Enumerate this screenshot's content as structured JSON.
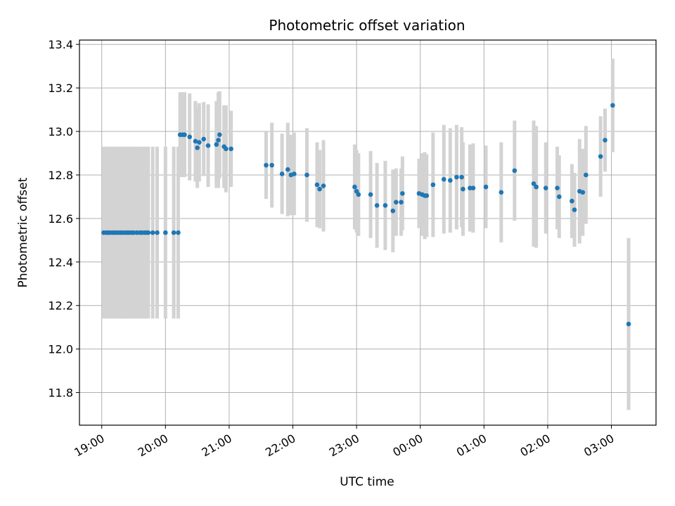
{
  "chart_data": {
    "type": "scatter",
    "title": "Photometric offset variation",
    "xlabel": "UTC time",
    "ylabel": "Photometric offset",
    "x_ticks": [
      "19:00",
      "20:00",
      "21:00",
      "22:00",
      "23:00",
      "00:00",
      "01:00",
      "02:00",
      "03:00"
    ],
    "y_ticks": [
      "11.8",
      "12.0",
      "12.2",
      "12.4",
      "12.6",
      "12.8",
      "13.0",
      "13.2",
      "13.4"
    ],
    "xlim_hours": [
      -0.35,
      8.7
    ],
    "ylim": [
      11.65,
      13.42
    ],
    "grid": true,
    "colors": {
      "point": "#1f77b4",
      "errorbar": "#d3d3d3",
      "grid": "#b0b0b0"
    },
    "series": [
      {
        "points": [
          {
            "t": 0.03,
            "y": 12.535,
            "e": 0.395
          },
          {
            "t": 0.07,
            "y": 12.535,
            "e": 0.395
          },
          {
            "t": 0.1,
            "y": 12.535,
            "e": 0.395
          },
          {
            "t": 0.13,
            "y": 12.535,
            "e": 0.395
          },
          {
            "t": 0.17,
            "y": 12.535,
            "e": 0.395
          },
          {
            "t": 0.2,
            "y": 12.535,
            "e": 0.395
          },
          {
            "t": 0.23,
            "y": 12.535,
            "e": 0.395
          },
          {
            "t": 0.27,
            "y": 12.535,
            "e": 0.395
          },
          {
            "t": 0.3,
            "y": 12.535,
            "e": 0.395
          },
          {
            "t": 0.33,
            "y": 12.535,
            "e": 0.395
          },
          {
            "t": 0.37,
            "y": 12.535,
            "e": 0.395
          },
          {
            "t": 0.4,
            "y": 12.535,
            "e": 0.395
          },
          {
            "t": 0.43,
            "y": 12.535,
            "e": 0.395
          },
          {
            "t": 0.47,
            "y": 12.535,
            "e": 0.395
          },
          {
            "t": 0.5,
            "y": 12.535,
            "e": 0.395
          },
          {
            "t": 0.55,
            "y": 12.535,
            "e": 0.395
          },
          {
            "t": 0.6,
            "y": 12.535,
            "e": 0.395
          },
          {
            "t": 0.63,
            "y": 12.535,
            "e": 0.395
          },
          {
            "t": 0.67,
            "y": 12.535,
            "e": 0.395
          },
          {
            "t": 0.7,
            "y": 12.535,
            "e": 0.395
          },
          {
            "t": 0.73,
            "y": 12.535,
            "e": 0.395
          },
          {
            "t": 0.8,
            "y": 12.535,
            "e": 0.395
          },
          {
            "t": 0.87,
            "y": 12.535,
            "e": 0.395
          },
          {
            "t": 1.0,
            "y": 12.535,
            "e": 0.395
          },
          {
            "t": 1.13,
            "y": 12.535,
            "e": 0.395
          },
          {
            "t": 1.2,
            "y": 12.535,
            "e": 0.395
          },
          {
            "t": 1.23,
            "y": 12.985,
            "e": 0.195
          },
          {
            "t": 1.27,
            "y": 12.985,
            "e": 0.195
          },
          {
            "t": 1.3,
            "y": 12.985,
            "e": 0.195
          },
          {
            "t": 1.38,
            "y": 12.975,
            "e": 0.2
          },
          {
            "t": 1.47,
            "y": 12.955,
            "e": 0.185
          },
          {
            "t": 1.5,
            "y": 12.925,
            "e": 0.185
          },
          {
            "t": 1.53,
            "y": 12.95,
            "e": 0.18
          },
          {
            "t": 1.6,
            "y": 12.965,
            "e": 0.17
          },
          {
            "t": 1.67,
            "y": 12.935,
            "e": 0.19
          },
          {
            "t": 1.8,
            "y": 12.94,
            "e": 0.2
          },
          {
            "t": 1.83,
            "y": 12.96,
            "e": 0.22
          },
          {
            "t": 1.85,
            "y": 12.985,
            "e": 0.2
          },
          {
            "t": 1.92,
            "y": 12.93,
            "e": 0.19
          },
          {
            "t": 1.95,
            "y": 12.92,
            "e": 0.2
          },
          {
            "t": 2.03,
            "y": 12.92,
            "e": 0.175
          },
          {
            "t": 2.58,
            "y": 12.845,
            "e": 0.155
          },
          {
            "t": 2.67,
            "y": 12.845,
            "e": 0.195
          },
          {
            "t": 2.83,
            "y": 12.805,
            "e": 0.185
          },
          {
            "t": 2.92,
            "y": 12.825,
            "e": 0.215
          },
          {
            "t": 2.97,
            "y": 12.8,
            "e": 0.185
          },
          {
            "t": 3.02,
            "y": 12.805,
            "e": 0.19
          },
          {
            "t": 3.22,
            "y": 12.8,
            "e": 0.215
          },
          {
            "t": 3.38,
            "y": 12.755,
            "e": 0.195
          },
          {
            "t": 3.42,
            "y": 12.735,
            "e": 0.18
          },
          {
            "t": 3.48,
            "y": 12.75,
            "e": 0.21
          },
          {
            "t": 3.97,
            "y": 12.745,
            "e": 0.195
          },
          {
            "t": 4.0,
            "y": 12.725,
            "e": 0.19
          },
          {
            "t": 4.03,
            "y": 12.71,
            "e": 0.19
          },
          {
            "t": 4.22,
            "y": 12.71,
            "e": 0.2
          },
          {
            "t": 4.32,
            "y": 12.66,
            "e": 0.195
          },
          {
            "t": 4.45,
            "y": 12.66,
            "e": 0.205
          },
          {
            "t": 4.57,
            "y": 12.635,
            "e": 0.19
          },
          {
            "t": 4.62,
            "y": 12.675,
            "e": 0.155
          },
          {
            "t": 4.7,
            "y": 12.675,
            "e": 0.155
          },
          {
            "t": 4.72,
            "y": 12.715,
            "e": 0.17
          },
          {
            "t": 4.98,
            "y": 12.715,
            "e": 0.16
          },
          {
            "t": 5.03,
            "y": 12.71,
            "e": 0.19
          },
          {
            "t": 5.07,
            "y": 12.705,
            "e": 0.2
          },
          {
            "t": 5.1,
            "y": 12.705,
            "e": 0.19
          },
          {
            "t": 5.2,
            "y": 12.755,
            "e": 0.24
          },
          {
            "t": 5.37,
            "y": 12.78,
            "e": 0.25
          },
          {
            "t": 5.47,
            "y": 12.775,
            "e": 0.24
          },
          {
            "t": 5.57,
            "y": 12.79,
            "e": 0.24
          },
          {
            "t": 5.65,
            "y": 12.79,
            "e": 0.23
          },
          {
            "t": 5.67,
            "y": 12.735,
            "e": 0.215
          },
          {
            "t": 5.78,
            "y": 12.74,
            "e": 0.2
          },
          {
            "t": 5.83,
            "y": 12.74,
            "e": 0.205
          },
          {
            "t": 6.03,
            "y": 12.745,
            "e": 0.19
          },
          {
            "t": 6.27,
            "y": 12.72,
            "e": 0.23
          },
          {
            "t": 6.48,
            "y": 12.82,
            "e": 0.23
          },
          {
            "t": 6.78,
            "y": 12.76,
            "e": 0.29
          },
          {
            "t": 6.82,
            "y": 12.745,
            "e": 0.28
          },
          {
            "t": 6.97,
            "y": 12.74,
            "e": 0.21
          },
          {
            "t": 7.15,
            "y": 12.74,
            "e": 0.19
          },
          {
            "t": 7.18,
            "y": 12.7,
            "e": 0.19
          },
          {
            "t": 7.38,
            "y": 12.68,
            "e": 0.17
          },
          {
            "t": 7.42,
            "y": 12.64,
            "e": 0.17
          },
          {
            "t": 7.5,
            "y": 12.725,
            "e": 0.24
          },
          {
            "t": 7.55,
            "y": 12.72,
            "e": 0.2
          },
          {
            "t": 7.6,
            "y": 12.8,
            "e": 0.225
          },
          {
            "t": 7.83,
            "y": 12.885,
            "e": 0.185
          },
          {
            "t": 7.9,
            "y": 12.96,
            "e": 0.145
          },
          {
            "t": 8.02,
            "y": 13.12,
            "e": 0.215
          },
          {
            "t": 8.27,
            "y": 12.115,
            "e": 0.395
          }
        ]
      }
    ]
  }
}
